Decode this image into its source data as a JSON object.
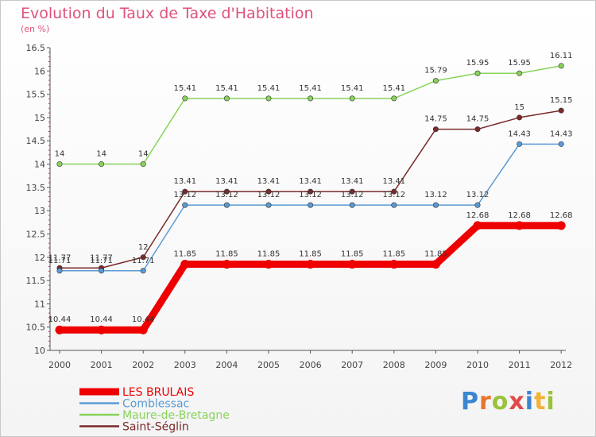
{
  "header": {
    "title": "Evolution du Taux de Taxe d'Habitation",
    "subtitle": "(en %)"
  },
  "logo": {
    "text": "Proxiti",
    "letter_colors": [
      "#3a86d0",
      "#e8742a",
      "#9ac23c",
      "#e04a4a",
      "#3a86d0",
      "#f2b233",
      "#9ac23c"
    ]
  },
  "chart_data": {
    "type": "line",
    "x": [
      "2000",
      "2001",
      "2002",
      "2003",
      "2004",
      "2005",
      "2006",
      "2007",
      "2008",
      "2009",
      "2010",
      "2011",
      "2012"
    ],
    "ylim": [
      10,
      16.5
    ],
    "yticks": [
      "10",
      "10.5",
      "11",
      "11.5",
      "12",
      "12.5",
      "13",
      "13.5",
      "14",
      "14.5",
      "15",
      "15.5",
      "16",
      "16.5"
    ],
    "grid": false,
    "legend_position": "bottom-left",
    "series": [
      {
        "name": "LES BRULAIS",
        "color": "#ee0000",
        "values": [
          10.44,
          10.44,
          10.44,
          11.85,
          11.85,
          11.85,
          11.85,
          11.85,
          11.85,
          11.85,
          12.68,
          12.68,
          12.68
        ],
        "labels": [
          "10.44",
          "10.44",
          "10.44",
          "11.85",
          "11.85",
          "11.85",
          "11.85",
          "11.85",
          "11.85",
          "11.85",
          "12.68",
          "12.68",
          "12.68"
        ]
      },
      {
        "name": "Comblessac",
        "color": "#5b9bd5",
        "values": [
          11.71,
          11.71,
          11.71,
          13.12,
          13.12,
          13.12,
          13.12,
          13.12,
          13.12,
          13.12,
          13.12,
          14.43,
          14.43
        ],
        "labels": [
          "11.71",
          "11.71",
          "11.71",
          "13.12",
          "13.12",
          "13.12",
          "13.12",
          "13.12",
          "13.12",
          "13.12",
          "13.12",
          "14.43",
          "14.43"
        ]
      },
      {
        "name": "Maure-de-Bretagne",
        "color": "#88d35a",
        "values": [
          14,
          14,
          14,
          15.41,
          15.41,
          15.41,
          15.41,
          15.41,
          15.41,
          15.79,
          15.95,
          15.95,
          16.11
        ],
        "labels": [
          "14",
          "14",
          "14",
          "15.41",
          "15.41",
          "15.41",
          "15.41",
          "15.41",
          "15.41",
          "15.79",
          "15.95",
          "15.95",
          "16.11"
        ]
      },
      {
        "name": "Saint-Séglin",
        "color": "#7a2a2a",
        "values": [
          11.77,
          11.77,
          12,
          13.41,
          13.41,
          13.41,
          13.41,
          13.41,
          13.41,
          14.75,
          14.75,
          15,
          15.15
        ],
        "labels": [
          "11.77",
          "11.77",
          "12",
          "13.41",
          "13.41",
          "13.41",
          "13.41",
          "13.41",
          "13.41",
          "14.75",
          "14.75",
          "15",
          "15.15"
        ]
      }
    ]
  }
}
